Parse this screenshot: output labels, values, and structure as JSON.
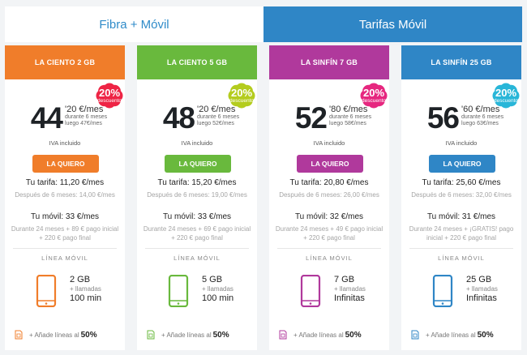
{
  "tabs": [
    {
      "label": "Fibra + Móvil",
      "active": false
    },
    {
      "label": "Tarifas Móvil",
      "active": true
    }
  ],
  "cards": [
    {
      "header": "LA CIENTO 2 GB",
      "color": "#f07d2a",
      "price_int": "44",
      "price_dec": "'20 €/mes",
      "promo_line1": "durante 6 meses",
      "promo_line2": "luego 47€/mes",
      "badge_pct": "20%",
      "badge_text": "descuento",
      "badge_color": "#ee2445",
      "iva": "IVA incluido",
      "cta": "LA QUIERO",
      "tarifa": "Tu tarifa: 11,20 €/mes",
      "despues": "Después de 6 meses: 14,00 €/mes",
      "movil": "Tu móvil: 33 €/mes",
      "durante": "Durante 24 meses + 89 € pago inicial + 220 € pago final",
      "linea": "LÍNEA MÓVIL",
      "gb": "2 GB",
      "llamadas": "+ llamadas",
      "minutes": "100 min",
      "add_text": "+ Añade líneas al",
      "add_pct": "50%"
    },
    {
      "header": "LA CIENTO 5 GB",
      "color": "#69b93d",
      "price_int": "48",
      "price_dec": "'20 €/mes",
      "promo_line1": "durante 6 meses",
      "promo_line2": "luego 52€/mes",
      "badge_pct": "20%",
      "badge_text": "descuento",
      "badge_color": "#b4cc1e",
      "iva": "IVA incluido",
      "cta": "LA QUIERO",
      "tarifa": "Tu tarifa: 15,20 €/mes",
      "despues": "Después de 6 meses: 19,00 €/mes",
      "movil": "Tu móvil: 33 €/mes",
      "durante": "Durante 24 meses + 69 € pago inicial + 220 € pago final",
      "linea": "LÍNEA MÓVIL",
      "gb": "5 GB",
      "llamadas": "+ llamadas",
      "minutes": "100 min",
      "add_text": "+ Añade líneas al",
      "add_pct": "50%"
    },
    {
      "header": "LA SINFÍN 7 GB",
      "color": "#b0399c",
      "price_int": "52",
      "price_dec": "'80 €/mes",
      "promo_line1": "durante 6 meses",
      "promo_line2": "luego 58€/mes",
      "badge_pct": "20%",
      "badge_text": "descuento",
      "badge_color": "#e6277f",
      "iva": "IVA incluido",
      "cta": "LA QUIERO",
      "tarifa": "Tu tarifa: 20,80 €/mes",
      "despues": "Después de 6 meses: 26,00 €/mes",
      "movil": "Tu móvil: 32 €/mes",
      "durante": "Durante 24 meses + 49 € pago inicial + 220 € pago final",
      "linea": "LÍNEA MÓVIL",
      "gb": "7 GB",
      "llamadas": "+ llamadas",
      "minutes": "Infinitas",
      "add_text": "+ Añade líneas al",
      "add_pct": "50%"
    },
    {
      "header": "LA SINFÍN 25 GB",
      "color": "#2f86c6",
      "price_int": "56",
      "price_dec": "'60 €/mes",
      "promo_line1": "durante 6 meses",
      "promo_line2": "luego 63€/mes",
      "badge_pct": "20%",
      "badge_text": "descuento",
      "badge_color": "#29b6d8",
      "iva": "IVA incluido",
      "cta": "LA QUIERO",
      "tarifa": "Tu tarifa: 25,60 €/mes",
      "despues": "Después de 6 meses: 32,00 €/mes",
      "movil": "Tu móvil: 31 €/mes",
      "durante": "Durante 24 meses + ¡GRATIS! pago inicial + 220 € pago final",
      "linea": "LÍNEA MÓVIL",
      "gb": "25 GB",
      "llamadas": "+ llamadas",
      "minutes": "Infinitas",
      "add_text": "+ Añade líneas al",
      "add_pct": "50%"
    }
  ]
}
